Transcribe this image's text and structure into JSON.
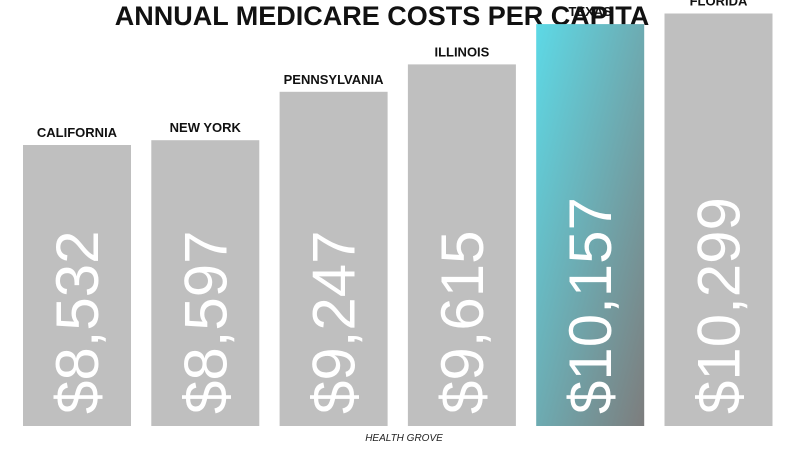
{
  "chart_data": {
    "type": "bar",
    "title": "ANNUAL MEDICARE COSTS PER CAPITA",
    "categories": [
      "CALIFORNIA",
      "NEW YORK",
      "PENNSYLVANIA",
      "ILLINOIS",
      "TEXAS",
      "FLORIDA"
    ],
    "values": [
      8532,
      8597,
      9247,
      9615,
      10157,
      10299
    ],
    "value_labels": [
      "$8,532",
      "$8,597",
      "$9,247",
      "$9,615",
      "$10,157",
      "$10,299"
    ],
    "highlight": "TEXAS",
    "source": "HEALTH GROVE",
    "xlabel": "",
    "ylabel": ""
  },
  "colors": {
    "bar": "#bfbfbf",
    "highlight_start": "#5dd9e6",
    "highlight_end": "#7d7d7d",
    "title": "#111111",
    "value_text": "#ffffff"
  }
}
